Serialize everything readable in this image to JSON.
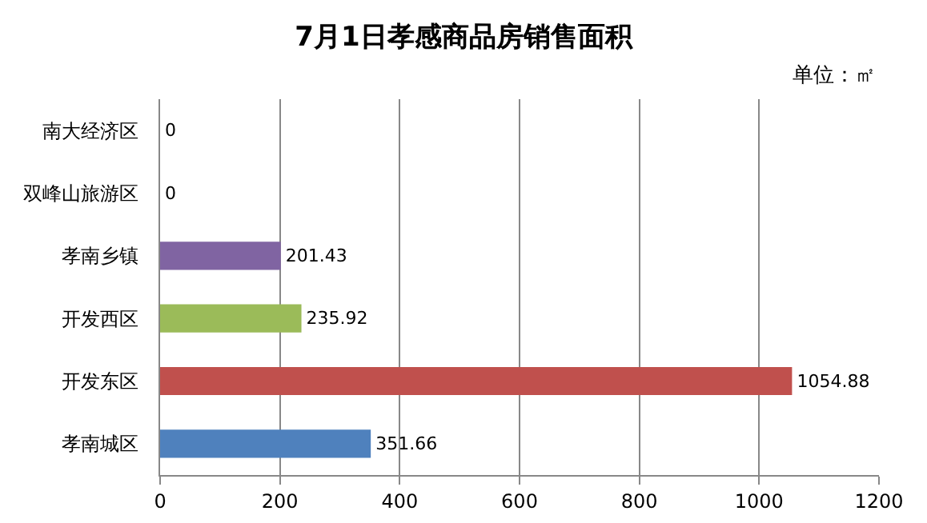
{
  "chart_data": {
    "type": "bar",
    "orientation": "horizontal",
    "title": "7月1日孝感商品房销售面积",
    "annotations": [
      "单位：㎡"
    ],
    "categories": [
      "南大经济区",
      "双峰山旅游区",
      "孝南乡镇",
      "开发西区",
      "开发东区",
      "孝南城区"
    ],
    "values": [
      0,
      0,
      201.43,
      235.92,
      1054.88,
      351.66
    ],
    "colors": [
      "#4f81bd",
      "#4f81bd",
      "#8064a2",
      "#9bbb59",
      "#c0504d",
      "#4f81bd"
    ],
    "xlim": [
      0,
      1200
    ],
    "xticks": [
      0,
      200,
      400,
      600,
      800,
      1000,
      1200
    ],
    "grid": "x",
    "data_labels": true,
    "legend": false
  }
}
